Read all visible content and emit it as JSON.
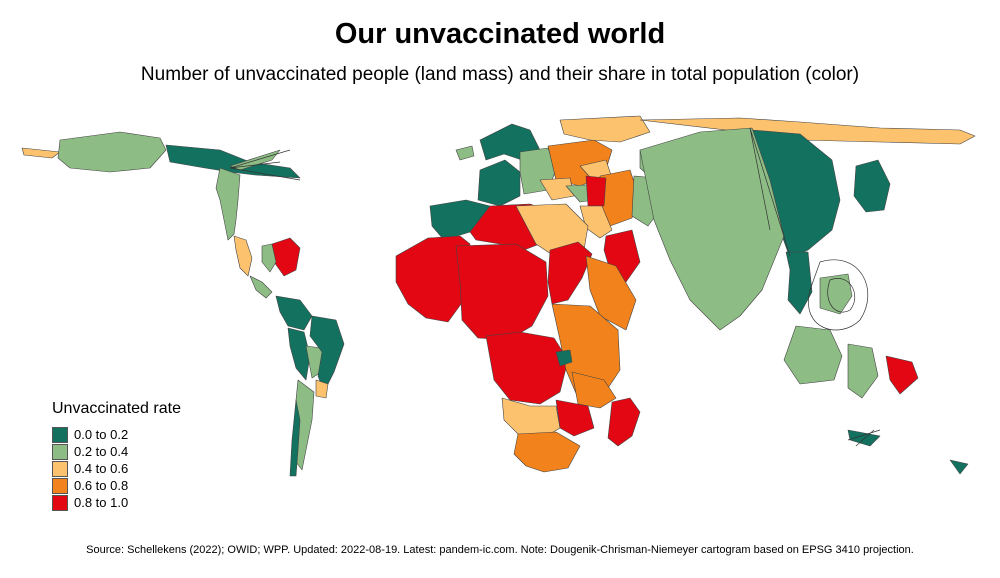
{
  "map": {
    "title": "Our unvaccinated world",
    "subtitle": "Number of unvaccinated people (land mass) and their share in total population (color)",
    "source": "Source: Schellekens (2022); OWID; WPP. Updated: 2022-08-19. Latest: pandem-ic.com. Note: Dougenik-Chrisman-Niemeyer cartogram based on EPSG 3410 projection.",
    "legend": {
      "title": "Unvaccinated rate",
      "items": [
        {
          "label": "0.0 to 0.2",
          "color": "#137160"
        },
        {
          "label": "0.2 to 0.4",
          "color": "#8dbd85"
        },
        {
          "label": "0.4 to 0.6",
          "color": "#fdc26e"
        },
        {
          "label": "0.6 to 0.8",
          "color": "#f2821b"
        },
        {
          "label": "0.8 to 1.0",
          "color": "#e30613"
        }
      ]
    }
  }
}
